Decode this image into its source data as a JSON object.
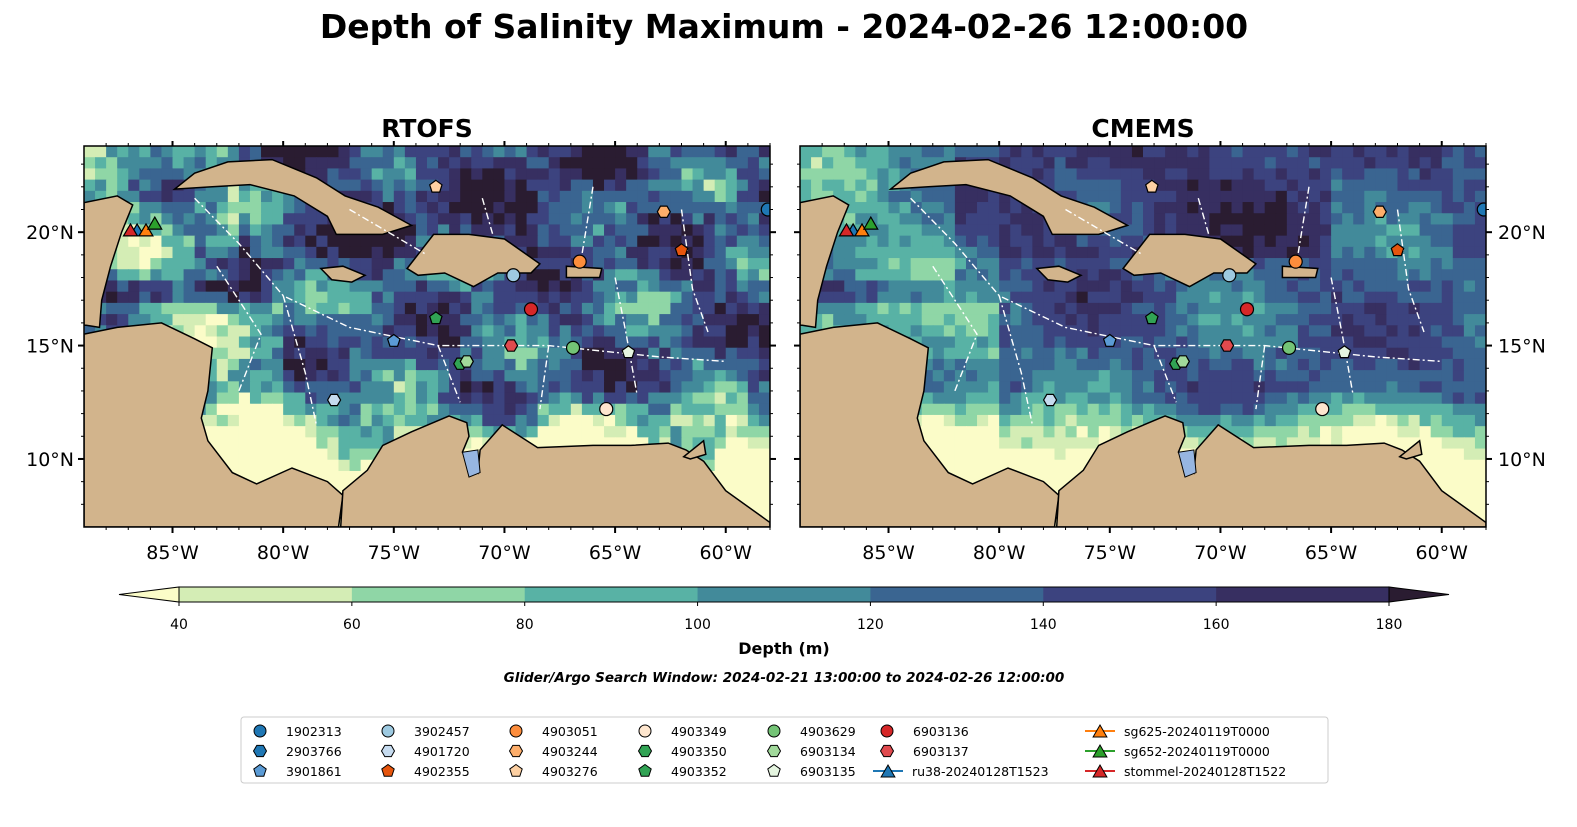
{
  "title": "Depth of Salinity Maximum - 2024-02-26 12:00:00",
  "panels": [
    {
      "title": "RTOFS"
    },
    {
      "title": "CMEMS"
    }
  ],
  "axes": {
    "lon_ticks": [
      "85°W",
      "80°W",
      "75°W",
      "70°W",
      "65°W",
      "60°W"
    ],
    "lat_ticks": [
      "20°N",
      "15°N",
      "10°N"
    ]
  },
  "colorbar": {
    "label": "Depth (m)",
    "ticks": [
      "40",
      "60",
      "80",
      "100",
      "120",
      "140",
      "160",
      "180"
    ],
    "levels": [
      40,
      60,
      80,
      100,
      120,
      140,
      160,
      180
    ],
    "extend": "both",
    "colors": [
      "#fbfcc8",
      "#d4edb5",
      "#8fd6a6",
      "#58b2a5",
      "#428a9a",
      "#3a6591",
      "#3c437f",
      "#372f61",
      "#2a1c31"
    ]
  },
  "subtitle": "Glider/Argo Search Window: 2024-02-21 13:00:00 to 2024-02-26 12:00:00",
  "colors": {
    "land": "#d2b48c",
    "lake": "#97b6e1"
  },
  "legend": {
    "columns": [
      [
        {
          "label": "1902313",
          "marker": "circle",
          "color": "#1f77b4"
        },
        {
          "label": "2903766",
          "marker": "hexagon",
          "color": "#1f77b4"
        },
        {
          "label": "3901861",
          "marker": "pentagon",
          "color": "#5b9bd5"
        }
      ],
      [
        {
          "label": "3902457",
          "marker": "circle",
          "color": "#9ecae1"
        },
        {
          "label": "4901720",
          "marker": "hexagon",
          "color": "#c6dbef"
        },
        {
          "label": "4902355",
          "marker": "pentagon",
          "color": "#e6550d"
        }
      ],
      [
        {
          "label": "4903051",
          "marker": "circle",
          "color": "#fd8d3c"
        },
        {
          "label": "4903244",
          "marker": "hexagon",
          "color": "#fdae6b"
        },
        {
          "label": "4903276",
          "marker": "pentagon",
          "color": "#fdd0a2"
        }
      ],
      [
        {
          "label": "4903349",
          "marker": "circle",
          "color": "#fee6ce"
        },
        {
          "label": "4903350",
          "marker": "hexagon",
          "color": "#31a354"
        },
        {
          "label": "4903352",
          "marker": "pentagon",
          "color": "#31a354"
        }
      ],
      [
        {
          "label": "4903629",
          "marker": "circle",
          "color": "#74c476"
        },
        {
          "label": "6903134",
          "marker": "hexagon",
          "color": "#a1d99b"
        },
        {
          "label": "6903135",
          "marker": "pentagon",
          "color": "#e5f5e0"
        }
      ],
      [
        {
          "label": "6903136",
          "marker": "circle",
          "color": "#d62728"
        },
        {
          "label": "6903137",
          "marker": "hexagon",
          "color": "#e04a4e"
        },
        {
          "label": "ru38-20240128T1523",
          "marker": "triangle-line",
          "color": "#1f77b4"
        }
      ],
      [
        {
          "label": "sg625-20240119T0000",
          "marker": "triangle-line",
          "color": "#ff7f0e"
        },
        {
          "label": "sg652-20240119T0000",
          "marker": "triangle-line",
          "color": "#2ca02c"
        },
        {
          "label": "stommel-20240128T1522",
          "marker": "triangle-line",
          "color": "#d62728"
        }
      ]
    ]
  },
  "markers": [
    {
      "id": "1902313",
      "shape": "circle",
      "color": "#1f77b4",
      "lon": -58.1,
      "lat": 21.0
    },
    {
      "id": "3902457",
      "shape": "circle",
      "color": "#9ecae1",
      "lon": -69.6,
      "lat": 18.1
    },
    {
      "id": "3901861",
      "shape": "pentagon",
      "color": "#5b9bd5",
      "lon": -75.0,
      "lat": 15.2
    },
    {
      "id": "4901720",
      "shape": "hexagon",
      "color": "#c6dbef",
      "lon": -77.7,
      "lat": 12.6
    },
    {
      "id": "4902355",
      "shape": "pentagon",
      "color": "#e6550d",
      "lon": -62.0,
      "lat": 19.2
    },
    {
      "id": "4903051",
      "shape": "circle",
      "color": "#fd8d3c",
      "lon": -66.6,
      "lat": 18.7
    },
    {
      "id": "4903244",
      "shape": "hexagon",
      "color": "#fdae6b",
      "lon": -62.8,
      "lat": 20.9
    },
    {
      "id": "4903276",
      "shape": "pentagon",
      "color": "#fdd0a2",
      "lon": -73.1,
      "lat": 22.0
    },
    {
      "id": "4903349",
      "shape": "circle",
      "color": "#fee6ce",
      "lon": -65.4,
      "lat": 12.2
    },
    {
      "id": "4903350",
      "shape": "hexagon",
      "color": "#31a354",
      "lon": -72.0,
      "lat": 14.2
    },
    {
      "id": "4903352",
      "shape": "pentagon",
      "color": "#31a354",
      "lon": -73.1,
      "lat": 16.2
    },
    {
      "id": "4903629",
      "shape": "circle",
      "color": "#74c476",
      "lon": -66.9,
      "lat": 14.9
    },
    {
      "id": "6903134",
      "shape": "hexagon",
      "color": "#a1d99b",
      "lon": -71.7,
      "lat": 14.3
    },
    {
      "id": "6903135",
      "shape": "pentagon",
      "color": "#e5f5e0",
      "lon": -64.4,
      "lat": 14.7
    },
    {
      "id": "6903136",
      "shape": "circle",
      "color": "#d62728",
      "lon": -68.8,
      "lat": 16.6
    },
    {
      "id": "6903137",
      "shape": "hexagon",
      "color": "#e04a4e",
      "lon": -69.7,
      "lat": 15.0
    },
    {
      "id": "ru38-20240128T1523",
      "shape": "triangle",
      "color": "#1f77b4",
      "lon": -86.6,
      "lat": 20.1
    },
    {
      "id": "sg625-20240119T0000",
      "shape": "triangle",
      "color": "#ff7f0e",
      "lon": -86.2,
      "lat": 20.1
    },
    {
      "id": "sg652-20240119T0000",
      "shape": "triangle",
      "color": "#2ca02c",
      "lon": -85.8,
      "lat": 20.4
    },
    {
      "id": "stommel-20240128T1522",
      "shape": "triangle",
      "color": "#d62728",
      "lon": -86.9,
      "lat": 20.1
    }
  ]
}
